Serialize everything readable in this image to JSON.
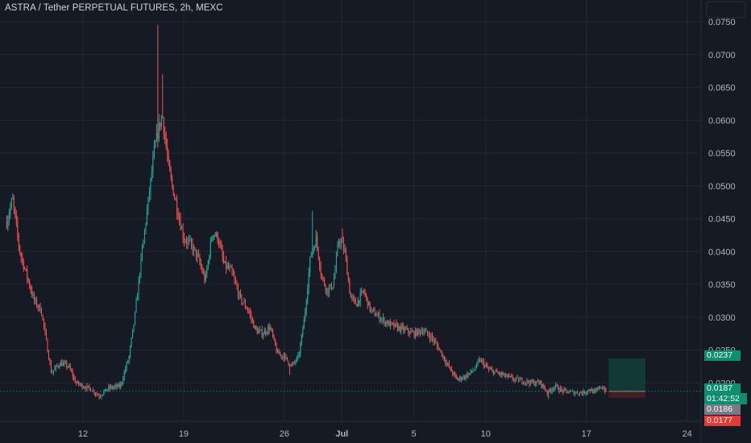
{
  "title": "ASTRA / Tether PERPETUAL FUTURES, 2h, MEXC",
  "colors": {
    "background": "#161a25",
    "grid": "#232733",
    "up": "#26a69a",
    "down": "#ef5350",
    "axis_text": "#b2b5be",
    "current_price": "#0b8f6f",
    "bid": "#787b86",
    "ask": "#e53935",
    "target_zone": "#12403a",
    "stop_zone": "#4a1f24"
  },
  "chart_data": {
    "type": "candlestick",
    "title": "ASTRA / Tether PERPETUAL FUTURES, 2h, MEXC",
    "ylim": [
      0.0158,
      0.0758
    ],
    "xlim_days": [
      6.7,
      24.55
    ],
    "y_ticks": [
      "0.0200",
      "0.0250",
      "0.0300",
      "0.0350",
      "0.0400",
      "0.0450",
      "0.0500",
      "0.0550",
      "0.0600",
      "0.0650",
      "0.0700",
      "0.0750"
    ],
    "x_ticks": [
      {
        "label": "12",
        "day": 12
      },
      {
        "label": "19",
        "day": 19
      },
      {
        "label": "26",
        "day": 26
      },
      {
        "label": "Jul",
        "day": 30
      },
      {
        "label": "5",
        "day": 35
      },
      {
        "label": "10",
        "day": 40
      },
      {
        "label": "17",
        "day": 47
      },
      {
        "label": "24",
        "day": 54
      }
    ],
    "grid": true,
    "price_path": [
      [
        6.7,
        0.0445
      ],
      [
        7.1,
        0.048
      ],
      [
        7.6,
        0.04
      ],
      [
        8.0,
        0.037
      ],
      [
        8.6,
        0.0325
      ],
      [
        9.1,
        0.031
      ],
      [
        9.8,
        0.0215
      ],
      [
        10.4,
        0.023
      ],
      [
        11.0,
        0.0225
      ],
      [
        11.5,
        0.02
      ],
      [
        12.0,
        0.0195
      ],
      [
        12.6,
        0.019
      ],
      [
        13.1,
        0.018
      ],
      [
        13.8,
        0.0192
      ],
      [
        14.6,
        0.0195
      ],
      [
        15.2,
        0.024
      ],
      [
        15.6,
        0.03
      ],
      [
        16.0,
        0.038
      ],
      [
        16.5,
        0.047
      ],
      [
        17.0,
        0.056
      ],
      [
        17.5,
        0.061
      ],
      [
        18.0,
        0.052
      ],
      [
        18.5,
        0.047
      ],
      [
        19.0,
        0.042
      ],
      [
        19.5,
        0.041
      ],
      [
        20.0,
        0.039
      ],
      [
        20.5,
        0.0355
      ],
      [
        21.0,
        0.043
      ],
      [
        21.4,
        0.042
      ],
      [
        21.8,
        0.038
      ],
      [
        22.3,
        0.037
      ],
      [
        22.9,
        0.033
      ],
      [
        23.5,
        0.031
      ],
      [
        24.0,
        0.028
      ],
      [
        24.5,
        0.0275
      ],
      [
        25.0,
        0.0285
      ],
      [
        25.5,
        0.0245
      ],
      [
        26.0,
        0.024
      ],
      [
        26.5,
        0.0225
      ],
      [
        27.0,
        0.024
      ],
      [
        27.4,
        0.03
      ],
      [
        27.8,
        0.039
      ],
      [
        28.2,
        0.042
      ],
      [
        28.6,
        0.036
      ],
      [
        29.0,
        0.034
      ],
      [
        29.4,
        0.035
      ],
      [
        29.8,
        0.042
      ],
      [
        30.2,
        0.04
      ],
      [
        30.6,
        0.033
      ],
      [
        31.0,
        0.032
      ],
      [
        31.5,
        0.034
      ],
      [
        32.0,
        0.031
      ],
      [
        32.6,
        0.03
      ],
      [
        33.2,
        0.029
      ],
      [
        33.8,
        0.0285
      ],
      [
        34.4,
        0.028
      ],
      [
        35.0,
        0.0275
      ],
      [
        35.6,
        0.028
      ],
      [
        36.2,
        0.027
      ],
      [
        36.8,
        0.025
      ],
      [
        37.4,
        0.0225
      ],
      [
        38.0,
        0.0205
      ],
      [
        38.6,
        0.021
      ],
      [
        39.2,
        0.022
      ],
      [
        39.6,
        0.0235
      ],
      [
        40.2,
        0.022
      ],
      [
        40.8,
        0.0215
      ],
      [
        41.4,
        0.021
      ],
      [
        42.0,
        0.0205
      ],
      [
        42.6,
        0.0203
      ],
      [
        43.2,
        0.02
      ],
      [
        43.8,
        0.02
      ],
      [
        44.3,
        0.0185
      ],
      [
        44.8,
        0.0195
      ],
      [
        45.3,
        0.0188
      ],
      [
        45.8,
        0.0186
      ],
      [
        46.3,
        0.0185
      ],
      [
        46.8,
        0.0185
      ],
      [
        47.2,
        0.019
      ],
      [
        47.6,
        0.0185
      ],
      [
        48.0,
        0.0195
      ],
      [
        48.4,
        0.0187
      ]
    ],
    "price_extremes": [
      {
        "day": 17.2,
        "price": 0.0745
      },
      {
        "day": 17.55,
        "price": 0.067
      },
      {
        "day": 27.95,
        "price": 0.0462
      },
      {
        "day": 30.0,
        "price": 0.0435
      },
      {
        "day": 13.3,
        "price": 0.0175
      },
      {
        "day": 26.4,
        "price": 0.0212
      },
      {
        "day": 44.35,
        "price": 0.0175
      }
    ],
    "current_price": "0.0187",
    "countdown": "01:42:52",
    "bid": "0.0186",
    "ask": "0.0177",
    "target_label": "0.0237",
    "position": {
      "start_day": 48.55,
      "end_day": 51.1,
      "entry": 0.0187,
      "target": 0.0237,
      "stop": 0.0177
    }
  }
}
